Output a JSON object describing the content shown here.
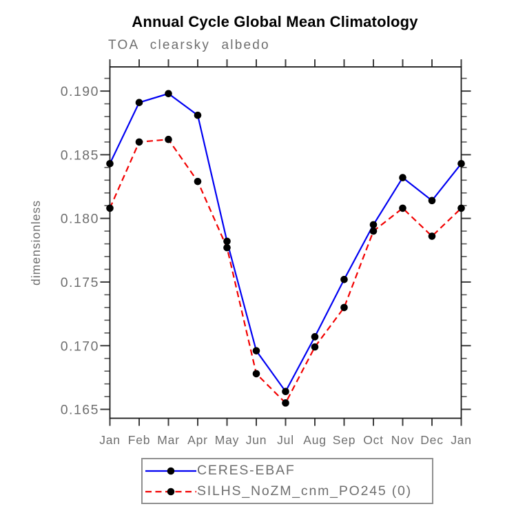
{
  "chart_data": {
    "type": "line",
    "title": "Annual Cycle Global Mean Climatology",
    "subtitle": "TOA clearsky albedo",
    "xlabel": "",
    "ylabel": "dimensionless",
    "categories": [
      "Jan",
      "Feb",
      "Mar",
      "Apr",
      "May",
      "Jun",
      "Jul",
      "Aug",
      "Sep",
      "Oct",
      "Nov",
      "Dec",
      "Jan"
    ],
    "ylim": [
      0.1643,
      0.1919
    ],
    "yticks": [
      0.19,
      0.185,
      0.18,
      0.175,
      0.17,
      0.165
    ],
    "ytick_labels": [
      "0.190",
      "0.185",
      "0.180",
      "0.175",
      "0.170",
      "0.165"
    ],
    "minor_tick_step": 0.001,
    "grid": false,
    "legend_position": "bottom",
    "series": [
      {
        "name": "CERES-EBAF",
        "color": "#0000f2",
        "line_style": "solid",
        "marker": "filled-circle",
        "marker_color": "#000000",
        "values": [
          0.1843,
          0.1891,
          0.1898,
          0.1881,
          0.1782,
          0.1696,
          0.1664,
          0.1707,
          0.1752,
          0.1795,
          0.1832,
          0.1814,
          0.1843
        ]
      },
      {
        "name": "SILHS_NoZM_cnm_PO245 (0)",
        "color": "#f20000",
        "line_style": "dashed",
        "marker": "filled-circle",
        "marker_color": "#000000",
        "values": [
          0.1808,
          0.186,
          0.1862,
          0.1829,
          0.1777,
          0.1678,
          0.1655,
          0.1699,
          0.173,
          0.179,
          0.1808,
          0.1786,
          0.1808
        ]
      }
    ]
  },
  "colors": {
    "axis_text": "#6e6e6e",
    "frame": "#1a1a1a",
    "major_tick": "#3d3d3d",
    "minor_tick": "#555555",
    "title_text": "#000000"
  }
}
